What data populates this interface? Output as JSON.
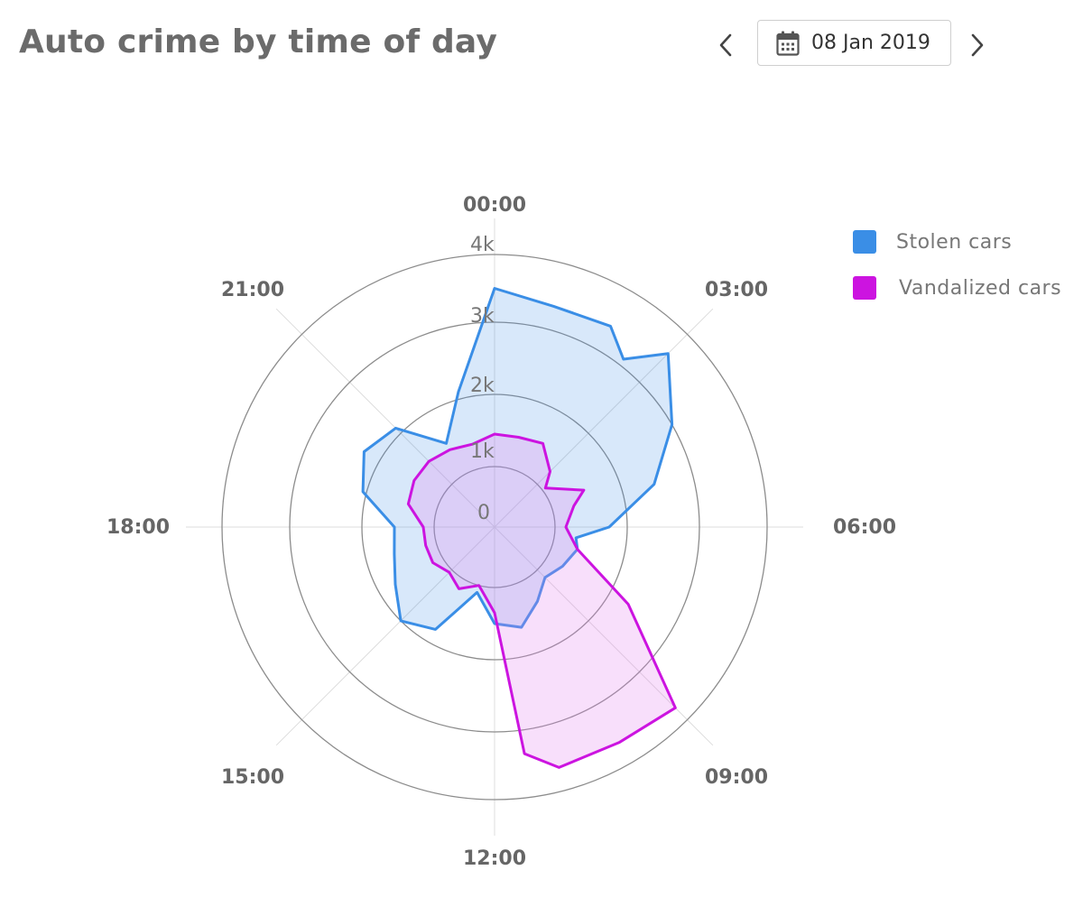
{
  "header": {
    "title": "Auto crime by time of day",
    "prev_icon": "chevron-left-icon",
    "next_icon": "chevron-right-icon",
    "calendar_icon": "calendar-icon",
    "date": "08 Jan 2019"
  },
  "chart_data": {
    "type": "radar",
    "title": "Auto crime by time of day",
    "angle_labels": [
      "00:00",
      "03:00",
      "06:00",
      "09:00",
      "12:00",
      "15:00",
      "18:00",
      "21:00"
    ],
    "radial_ticks": [
      "0",
      "1k",
      "2k",
      "3k",
      "4k"
    ],
    "radial_range": [
      0,
      4000
    ],
    "grid": true,
    "legend_position": "top-right",
    "x_unit": "hour of day (0-24, 0 at top, clockwise)",
    "series": [
      {
        "name": "Stolen cars",
        "color": "#3a8ee6",
        "fill": "rgba(58,142,230,0.20)",
        "points": [
          [
            0,
            3500
          ],
          [
            1,
            3350
          ],
          [
            2,
            3400
          ],
          [
            2.5,
            3100
          ],
          [
            3,
            3600
          ],
          [
            4,
            3000
          ],
          [
            5,
            2450
          ],
          [
            6,
            1750
          ],
          [
            6.5,
            1300
          ],
          [
            7,
            1350
          ],
          [
            8,
            1250
          ],
          [
            9,
            1150
          ],
          [
            10,
            1350
          ],
          [
            11,
            1600
          ],
          [
            12,
            1500
          ],
          [
            13,
            1100
          ],
          [
            14,
            1800
          ],
          [
            15,
            2000
          ],
          [
            16,
            1750
          ],
          [
            17,
            1600
          ],
          [
            18,
            1550
          ],
          [
            19,
            2050
          ],
          [
            20,
            2250
          ],
          [
            21,
            2100
          ],
          [
            22,
            1500
          ],
          [
            23,
            2100
          ]
        ]
      },
      {
        "name": "Vandalized cars",
        "color": "#cc14e0",
        "fill": "rgba(229,128,240,0.25)",
        "points": [
          [
            0,
            1450
          ],
          [
            1,
            1450
          ],
          [
            2,
            1500
          ],
          [
            3,
            1250
          ],
          [
            3.5,
            1050
          ],
          [
            4.5,
            1500
          ],
          [
            5,
            1300
          ],
          [
            6,
            1150
          ],
          [
            7,
            1350
          ],
          [
            8,
            2300
          ],
          [
            9,
            3750
          ],
          [
            10,
            3650
          ],
          [
            11,
            3650
          ],
          [
            11.5,
            3350
          ],
          [
            12,
            1350
          ],
          [
            13,
            1000
          ],
          [
            14,
            1150
          ],
          [
            15,
            1050
          ],
          [
            16,
            1150
          ],
          [
            17,
            1150
          ],
          [
            18,
            1150
          ],
          [
            19,
            1400
          ],
          [
            20,
            1450
          ],
          [
            21,
            1450
          ],
          [
            22,
            1400
          ],
          [
            23,
            1350
          ]
        ]
      }
    ]
  }
}
